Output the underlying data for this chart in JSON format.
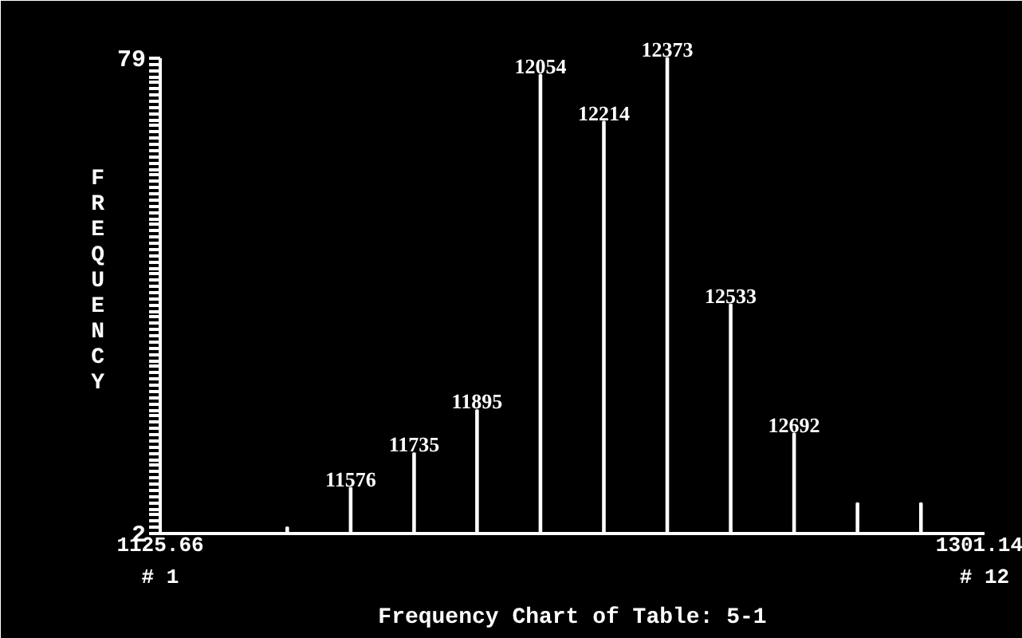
{
  "chart_data": {
    "type": "bar",
    "title": "Frequency Chart of Table: 5-1",
    "ylabel": "FREQUENCY",
    "x": [
      1152.7,
      1166.2,
      1179.7,
      1193.1,
      1206.6,
      1220.1,
      1233.6,
      1247.1,
      1260.6,
      1274.1,
      1287.6
    ],
    "values": [
      3,
      9.4,
      15,
      22,
      76.3,
      68.7,
      79,
      39.1,
      18.2,
      6.9,
      6.9
    ],
    "color": "#ffffff",
    "xlim": [
      1125.66,
      1301.14
    ],
    "xticks": [
      1125.66,
      1301.14
    ],
    "annotations": [
      {
        "text": "11576",
        "x": 1166.2,
        "y": 9.4
      },
      {
        "text": "11735",
        "x": 1179.7,
        "y": 15
      },
      {
        "text": "11895",
        "x": 1193.1,
        "y": 22
      },
      {
        "text": "12054",
        "x": 1206.6,
        "y": 76.3
      },
      {
        "text": "12214",
        "x": 1220.1,
        "y": 68.7
      },
      {
        "text": "12373",
        "x": 1233.6,
        "y": 79
      },
      {
        "text": "12533",
        "x": 1247.1,
        "y": 39.1
      },
      {
        "text": "12692",
        "x": 1260.6,
        "y": 18.2
      },
      "# 1",
      "# 12"
    ],
    "ylim": [
      2,
      79
    ],
    "yticks": [
      2,
      {
        "value": 3,
        "label": null
      },
      {
        "value": 4,
        "label": null
      },
      {
        "value": 5,
        "label": null
      },
      {
        "value": 6,
        "label": null
      },
      {
        "value": 7,
        "label": null
      },
      {
        "value": 8,
        "label": null
      },
      {
        "value": 9,
        "label": null
      },
      {
        "value": 10,
        "label": null
      },
      {
        "value": 11,
        "label": null
      },
      {
        "value": 12,
        "label": null
      },
      {
        "value": 13,
        "label": null
      },
      {
        "value": 14,
        "label": null
      },
      {
        "value": 15,
        "label": null
      },
      {
        "value": 16,
        "label": null
      },
      {
        "value": 17,
        "label": null
      },
      {
        "value": 18,
        "label": null
      },
      {
        "value": 19,
        "label": null
      },
      {
        "value": 20,
        "label": null
      },
      {
        "value": 21,
        "label": null
      },
      {
        "value": 22,
        "label": null
      },
      {
        "value": 23,
        "label": null
      },
      {
        "value": 24,
        "label": null
      },
      {
        "value": 25,
        "label": null
      },
      {
        "value": 26,
        "label": null
      },
      {
        "value": 27,
        "label": null
      },
      {
        "value": 28,
        "label": null
      },
      {
        "value": 29,
        "label": null
      },
      {
        "value": 30,
        "label": null
      },
      {
        "value": 31,
        "label": null
      },
      {
        "value": 32,
        "label": null
      },
      {
        "value": 33,
        "label": null
      },
      {
        "value": 34,
        "label": null
      },
      {
        "value": 35,
        "label": null
      },
      {
        "value": 36,
        "label": null
      },
      {
        "value": 37,
        "label": null
      },
      {
        "value": 38,
        "label": null
      },
      {
        "value": 39,
        "label": null
      },
      {
        "value": 40,
        "label": null
      },
      {
        "value": 41,
        "label": null
      },
      {
        "value": 42,
        "label": null
      },
      {
        "value": 43,
        "label": null
      },
      {
        "value": 44,
        "label": null
      },
      {
        "value": 45,
        "label": null
      },
      {
        "value": 46,
        "label": null
      },
      {
        "value": 47,
        "label": null
      },
      {
        "value": 48,
        "label": null
      },
      {
        "value": 49,
        "label": null
      },
      {
        "value": 50,
        "label": null
      },
      {
        "value": 51,
        "label": null
      },
      {
        "value": 52,
        "label": null
      },
      {
        "value": 53,
        "label": null
      },
      {
        "value": 54,
        "label": null
      },
      {
        "value": 55,
        "label": null
      },
      {
        "value": 56,
        "label": null
      },
      {
        "value": 57,
        "label": null
      },
      {
        "value": 58,
        "label": null
      },
      {
        "value": 59,
        "label": null
      },
      {
        "value": 60,
        "label": null
      },
      {
        "value": 61,
        "label": null
      },
      {
        "value": 62,
        "label": null
      },
      {
        "value": 63,
        "label": null
      },
      {
        "value": 64,
        "label": null
      },
      {
        "value": 65,
        "label": null
      },
      {
        "value": 66,
        "label": null
      },
      {
        "value": 67,
        "label": null
      },
      {
        "value": 68,
        "label": null
      },
      {
        "value": 69,
        "label": null
      },
      {
        "value": 70,
        "label": null
      },
      {
        "value": 71,
        "label": null
      },
      {
        "value": 72,
        "label": null
      },
      {
        "value": 73,
        "label": null
      },
      {
        "value": 74,
        "label": null
      },
      {
        "value": 75,
        "label": null
      },
      {
        "value": 76,
        "label": null
      },
      {
        "value": 77,
        "label": null
      },
      {
        "value": 78,
        "label": null
      },
      79
    ],
    "grid": false
  }
}
